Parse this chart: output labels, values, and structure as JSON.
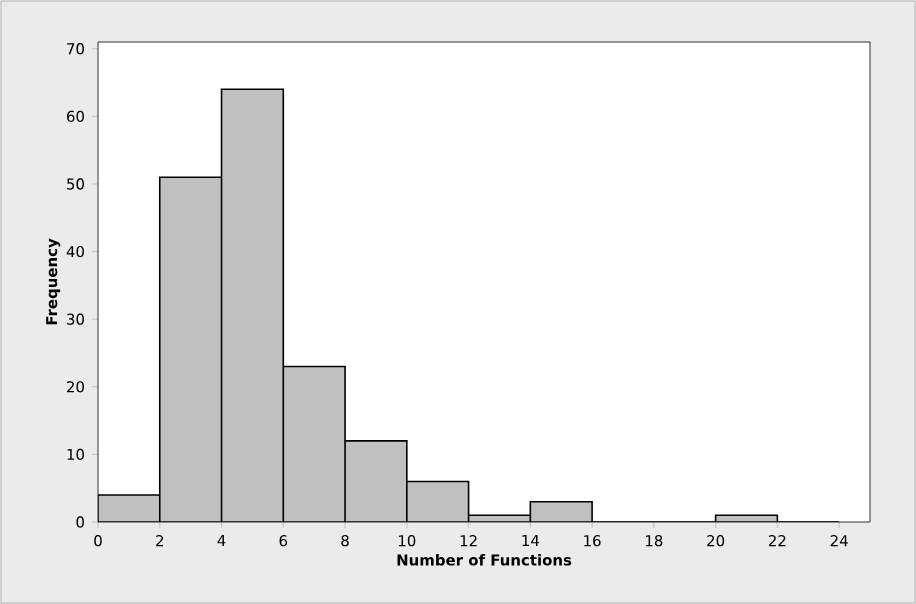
{
  "chart_data": {
    "type": "histogram",
    "xlabel": "Number of Functions",
    "ylabel": "Frequency",
    "bins": [
      0,
      2,
      4,
      6,
      8,
      10,
      12,
      14,
      16,
      18,
      20,
      22,
      24
    ],
    "values": [
      4,
      51,
      64,
      23,
      12,
      6,
      1,
      3,
      0,
      0,
      1,
      0
    ],
    "color": "#c0c0c0",
    "xlim": [
      0,
      25
    ],
    "ylim": [
      0,
      71
    ],
    "xticks": [
      0,
      2,
      4,
      6,
      8,
      10,
      12,
      14,
      16,
      18,
      20,
      22,
      24
    ],
    "yticks": [
      0,
      10,
      20,
      30,
      40,
      50,
      60,
      70
    ],
    "grid": false
  }
}
